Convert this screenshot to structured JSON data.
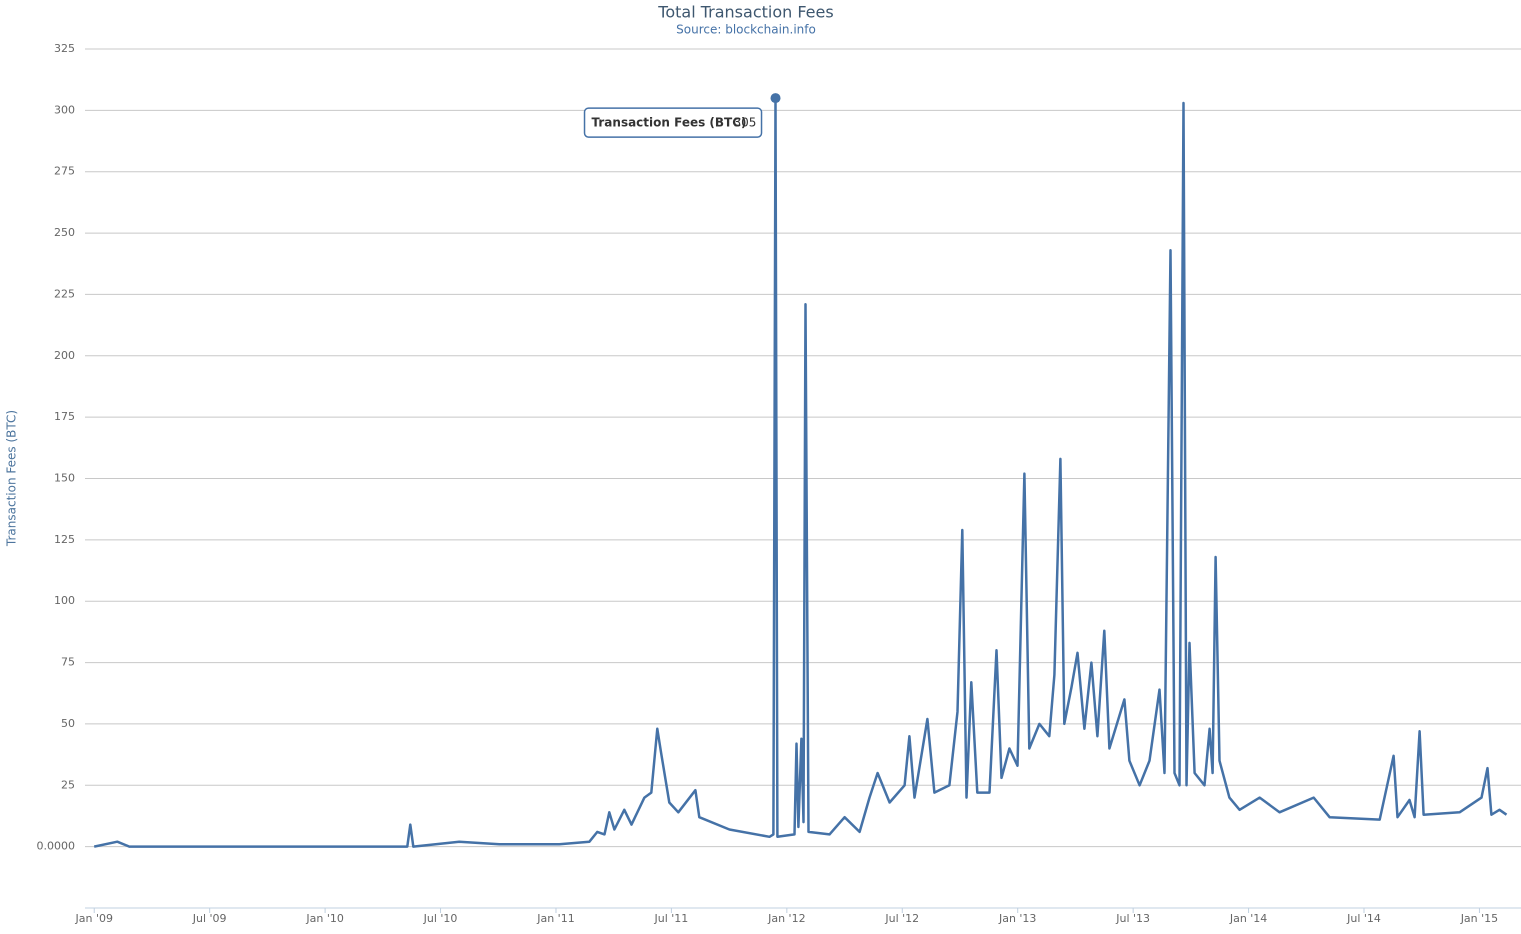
{
  "chart_data": {
    "type": "line",
    "title": "Total Transaction Fees",
    "subtitle": "Source: blockchain.info",
    "y_label": "Transaction Fees (BTC)",
    "x": [
      2009.0,
      2009.1,
      2009.152,
      2009.888,
      2010.356,
      2010.369,
      2010.382,
      2010.581,
      2010.755,
      2011.015,
      2011.145,
      2011.179,
      2011.21,
      2011.231,
      2011.253,
      2011.296,
      2011.327,
      2011.383,
      2011.413,
      2011.439,
      2011.456,
      2011.491,
      2011.53,
      2011.604,
      2011.621,
      2011.751,
      2011.925,
      2011.942,
      2011.951,
      2011.959,
      2012.033,
      2012.042,
      2012.05,
      2012.063,
      2012.072,
      2012.081,
      2012.094,
      2012.185,
      2012.25,
      2012.315,
      2012.358,
      2012.393,
      2012.445,
      2012.51,
      2012.531,
      2012.553,
      2012.609,
      2012.639,
      2012.704,
      2012.739,
      2012.76,
      2012.778,
      2012.799,
      2012.825,
      2012.878,
      2012.908,
      2012.93,
      2012.964,
      2012.999,
      2013.029,
      2013.05,
      2013.094,
      2013.137,
      2013.159,
      2013.185,
      2013.202,
      2013.233,
      2013.259,
      2013.289,
      2013.319,
      2013.345,
      2013.375,
      2013.397,
      2013.462,
      2013.484,
      2013.528,
      2013.571,
      2013.614,
      2013.636,
      2013.662,
      2013.679,
      2013.701,
      2013.718,
      2013.731,
      2013.744,
      2013.766,
      2013.809,
      2013.831,
      2013.844,
      2013.857,
      2013.874,
      2013.917,
      2013.961,
      2014.048,
      2014.134,
      2014.282,
      2014.351,
      2014.568,
      2014.628,
      2014.645,
      2014.697,
      2014.719,
      2014.741,
      2014.758,
      2014.914,
      2015.009,
      2015.035,
      2015.052,
      2015.087,
      2015.117
    ],
    "series": [
      {
        "name": "Transaction Fees (BTC)",
        "color": "#4572a7",
        "values": [
          0,
          2,
          0,
          0,
          0,
          9,
          0,
          2,
          1,
          1,
          2,
          6,
          5,
          14,
          7,
          15,
          9,
          20,
          22,
          48,
          38,
          18,
          14,
          23,
          12,
          7,
          4,
          5,
          305,
          4,
          5,
          42,
          8,
          44,
          10,
          221,
          6,
          5,
          12,
          6,
          20,
          30,
          18,
          25,
          45,
          20,
          52,
          22,
          25,
          55,
          129,
          20,
          67,
          22,
          22,
          80,
          28,
          40,
          33,
          152,
          40,
          50,
          45,
          70,
          158,
          50,
          65,
          79,
          48,
          75,
          45,
          88,
          40,
          60,
          35,
          25,
          35,
          64,
          30,
          243,
          30,
          25,
          303,
          25,
          83,
          30,
          25,
          48,
          30,
          118,
          35,
          20,
          15,
          20,
          14,
          20,
          12,
          11,
          37,
          12,
          19,
          12,
          47,
          13,
          14,
          20,
          32,
          13,
          15,
          13
        ]
      }
    ],
    "xlim": [
      2008.96,
      2015.18
    ],
    "xticks": [
      {
        "value": 2009.0,
        "label": "Jan '09"
      },
      {
        "value": 2009.5,
        "label": "Jul '09"
      },
      {
        "value": 2010.0,
        "label": "Jan '10"
      },
      {
        "value": 2010.5,
        "label": "Jul '10"
      },
      {
        "value": 2011.0,
        "label": "Jan '11"
      },
      {
        "value": 2011.5,
        "label": "Jul '11"
      },
      {
        "value": 2012.0,
        "label": "Jan '12"
      },
      {
        "value": 2012.5,
        "label": "Jul '12"
      },
      {
        "value": 2013.0,
        "label": "Jan '13"
      },
      {
        "value": 2013.5,
        "label": "Jul '13"
      },
      {
        "value": 2014.0,
        "label": "Jan '14"
      },
      {
        "value": 2014.5,
        "label": "Jul '14"
      },
      {
        "value": 2015.0,
        "label": "Jan '15"
      }
    ],
    "ylim": [
      -25,
      325
    ],
    "yticks": [
      {
        "value": 0,
        "label": "0.0000"
      },
      25,
      50,
      75,
      100,
      125,
      150,
      175,
      200,
      225,
      250,
      275,
      300,
      325
    ],
    "grid": true
  }
}
